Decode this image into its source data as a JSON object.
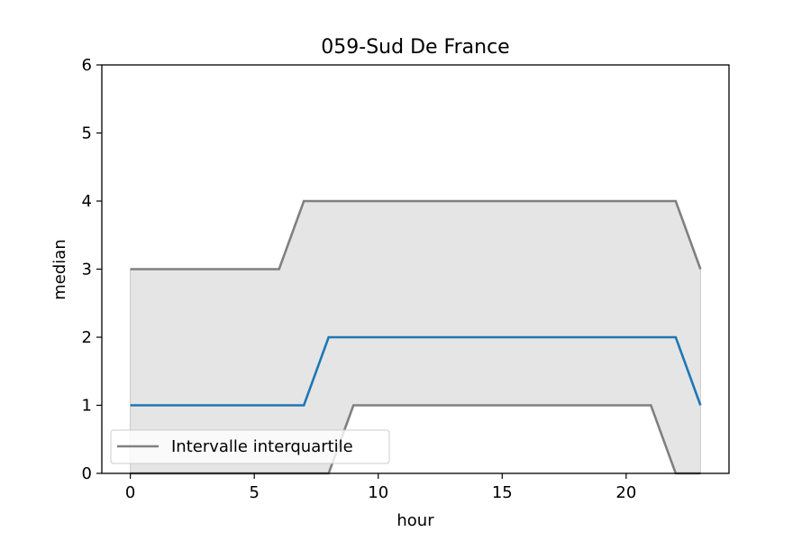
{
  "chart_data": {
    "type": "line",
    "title": "059-Sud De France",
    "xlabel": "hour",
    "ylabel": "median",
    "xlim": [
      -1.15,
      24.15
    ],
    "ylim": [
      0,
      6
    ],
    "xticks": [
      0,
      5,
      10,
      15,
      20
    ],
    "yticks": [
      0,
      1,
      2,
      3,
      4,
      5,
      6
    ],
    "x": [
      0,
      1,
      2,
      3,
      4,
      5,
      6,
      7,
      8,
      9,
      10,
      11,
      12,
      13,
      14,
      15,
      16,
      17,
      18,
      19,
      20,
      21,
      22,
      23
    ],
    "series": [
      {
        "role": "median",
        "color": "#1f77b4",
        "values": [
          1,
          1,
          1,
          1,
          1,
          1,
          1,
          1,
          2,
          2,
          2,
          2,
          2,
          2,
          2,
          2,
          2,
          2,
          2,
          2,
          2,
          2,
          2,
          1
        ]
      },
      {
        "role": "upper-quartile",
        "name": "Intervalle interquartile",
        "color": "#808080",
        "values": [
          3,
          3,
          3,
          3,
          3,
          3,
          3,
          4,
          4,
          4,
          4,
          4,
          4,
          4,
          4,
          4,
          4,
          4,
          4,
          4,
          4,
          4,
          4,
          3
        ]
      },
      {
        "role": "lower-quartile",
        "color": "#808080",
        "values": [
          0,
          0,
          0,
          0,
          0,
          0,
          0,
          0,
          0,
          1,
          1,
          1,
          1,
          1,
          1,
          1,
          1,
          1,
          1,
          1,
          1,
          1,
          0,
          0
        ]
      }
    ],
    "fill_between": {
      "color": "#e5e5e5",
      "edge": "#c8c8c8"
    },
    "grid": false,
    "legend": {
      "position": "lower-left",
      "entries": [
        "Intervalle interquartile"
      ]
    }
  }
}
